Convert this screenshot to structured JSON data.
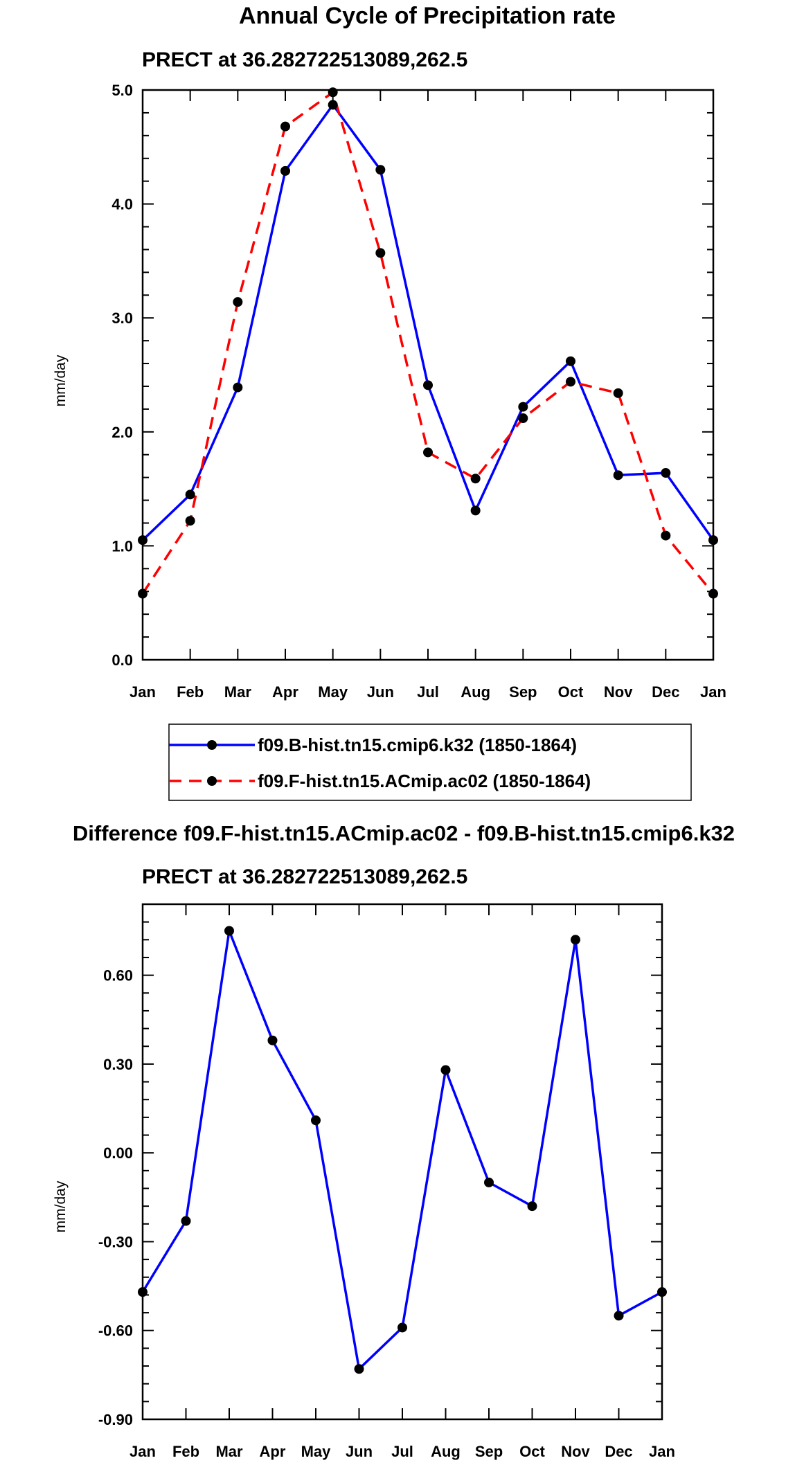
{
  "chart_data": [
    {
      "type": "line",
      "title": "Annual Cycle of Precipitation rate",
      "subtitle": "PRECT at 36.282722513089,262.5",
      "xlabel": "",
      "ylabel": "mm/day",
      "categories": [
        "Jan",
        "Feb",
        "Mar",
        "Apr",
        "May",
        "Jun",
        "Jul",
        "Aug",
        "Sep",
        "Oct",
        "Nov",
        "Dec",
        "Jan"
      ],
      "ylim": [
        0,
        5
      ],
      "yticks": [
        "0.0",
        "1.0",
        "2.0",
        "3.0",
        "4.0",
        "5.0"
      ],
      "ytick_values": [
        0,
        1,
        2,
        3,
        4,
        5
      ],
      "series": [
        {
          "name": "f09.B-hist.tn15.cmip6.k32 (1850-1864)",
          "color": "#0000ff",
          "dashed": false,
          "values": [
            1.05,
            1.45,
            2.39,
            4.29,
            4.87,
            4.3,
            2.41,
            1.31,
            2.22,
            2.62,
            1.62,
            1.64,
            1.05
          ]
        },
        {
          "name": "f09.F-hist.tn15.ACmip.ac02 (1850-1864)",
          "color": "#ff0000",
          "dashed": true,
          "values": [
            0.58,
            1.22,
            3.14,
            4.68,
            4.98,
            3.57,
            1.82,
            1.59,
            2.12,
            2.44,
            2.34,
            1.09,
            0.58
          ]
        }
      ],
      "legend": "bottom"
    },
    {
      "type": "line",
      "title": "Difference f09.F-hist.tn15.ACmip.ac02 - f09.B-hist.tn15.cmip6.k32",
      "subtitle": "PRECT at 36.282722513089,262.5",
      "xlabel": "",
      "ylabel": "mm/day",
      "categories": [
        "Jan",
        "Feb",
        "Mar",
        "Apr",
        "May",
        "Jun",
        "Jul",
        "Aug",
        "Sep",
        "Oct",
        "Nov",
        "Dec",
        "Jan"
      ],
      "ylim": [
        -0.9,
        0.84
      ],
      "yticks": [
        "-0.90",
        "-0.60",
        "-0.30",
        "0.00",
        "0.30",
        "0.60"
      ],
      "ytick_values": [
        -0.9,
        -0.6,
        -0.3,
        0.0,
        0.3,
        0.6
      ],
      "series": [
        {
          "name": "difference",
          "color": "#0000ff",
          "dashed": false,
          "values": [
            -0.47,
            -0.23,
            0.75,
            0.38,
            0.11,
            -0.73,
            -0.59,
            0.28,
            -0.1,
            -0.18,
            0.72,
            -0.55,
            -0.47
          ]
        }
      ]
    }
  ]
}
